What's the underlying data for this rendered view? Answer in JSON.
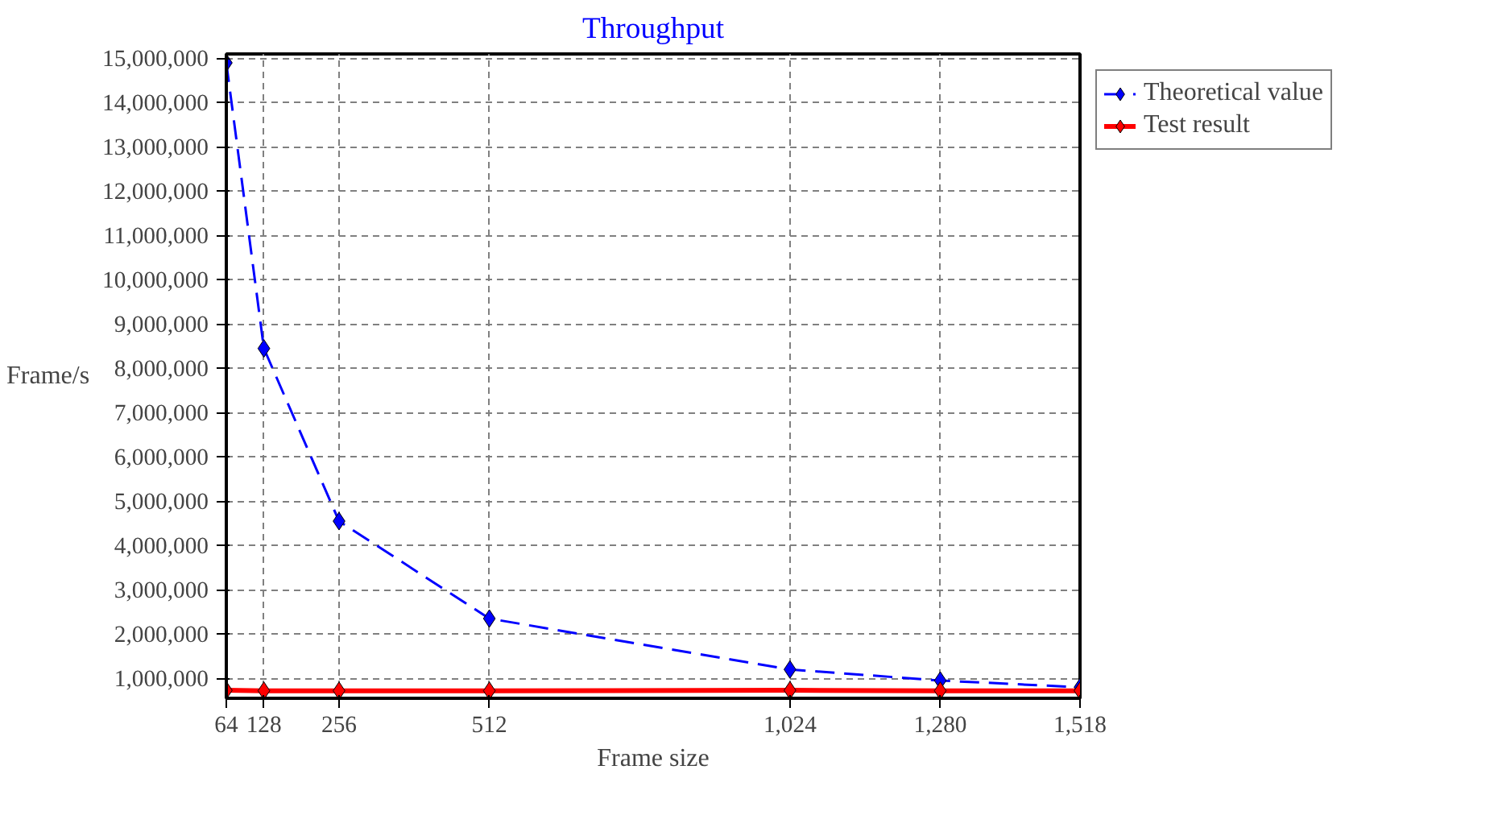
{
  "chart_data": {
    "type": "line",
    "title": "Throughput",
    "xlabel": "Frame size",
    "ylabel": "Frame/s",
    "x": [
      64,
      128,
      256,
      512,
      1024,
      1280,
      1518
    ],
    "series": [
      {
        "name": "Theoretical value",
        "color": "#0000ff",
        "line_style": "dashed",
        "values": [
          14900000,
          8450000,
          4550000,
          2350000,
          1200000,
          950000,
          800000
        ]
      },
      {
        "name": "Test result",
        "color": "#ff0000",
        "line_style": "solid",
        "values": [
          730000,
          720000,
          720000,
          720000,
          730000,
          720000,
          720000
        ]
      }
    ],
    "marker": "diamond",
    "xlim": [
      64,
      1518
    ],
    "xticks": [
      {
        "value": 64,
        "label": "64"
      },
      {
        "value": 128,
        "label": "128"
      },
      {
        "value": 256,
        "label": "256"
      },
      {
        "value": 512,
        "label": "512"
      },
      {
        "value": 1024,
        "label": "1,024"
      },
      {
        "value": 1280,
        "label": "1,280"
      },
      {
        "value": 1518,
        "label": "1,518"
      }
    ],
    "ylim": [
      550000,
      15100000
    ],
    "yticks": [
      {
        "value": 1000000,
        "label": "1,000,000"
      },
      {
        "value": 2000000,
        "label": "2,000,000"
      },
      {
        "value": 3000000,
        "label": "3,000,000"
      },
      {
        "value": 4000000,
        "label": "4,000,000"
      },
      {
        "value": 5000000,
        "label": "5,000,000"
      },
      {
        "value": 6000000,
        "label": "6,000,000"
      },
      {
        "value": 7000000,
        "label": "7,000,000"
      },
      {
        "value": 8000000,
        "label": "8,000,000"
      },
      {
        "value": 9000000,
        "label": "9,000,000"
      },
      {
        "value": 10000000,
        "label": "10,000,000"
      },
      {
        "value": 11000000,
        "label": "11,000,000"
      },
      {
        "value": 12000000,
        "label": "12,000,000"
      },
      {
        "value": 13000000,
        "label": "13,000,000"
      },
      {
        "value": 14000000,
        "label": "14,000,000"
      },
      {
        "value": 15000000,
        "label": "15,000,000"
      }
    ],
    "grid": true,
    "legend": "top right"
  }
}
